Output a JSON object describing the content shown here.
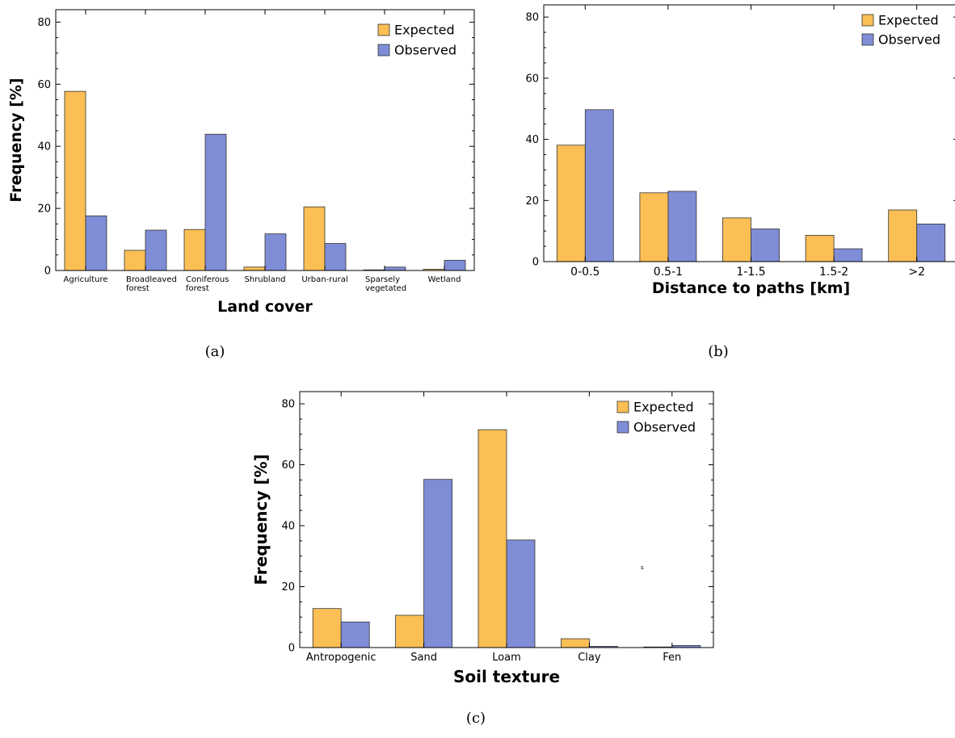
{
  "colors": {
    "expected": "#FBBF55",
    "observed": "#7F8DD6"
  },
  "stray_mark": "s",
  "chart_data": [
    {
      "type": "bar",
      "caption": "(a)",
      "categories": [
        [
          "Agriculture"
        ],
        [
          "Broadleaved",
          "forest"
        ],
        [
          "Coniferous",
          "forest"
        ],
        [
          "Shrubland"
        ],
        [
          "Urban-rural"
        ],
        [
          "Sparsely",
          "vegetated"
        ],
        [
          "Wetland"
        ]
      ],
      "series": [
        {
          "name": "Expected",
          "values": [
            57.7,
            6.5,
            13.2,
            1.1,
            20.5,
            0.2,
            0.4
          ]
        },
        {
          "name": "Observed",
          "values": [
            17.6,
            13.0,
            43.9,
            11.8,
            8.7,
            1.1,
            3.3
          ]
        }
      ],
      "xlabel": "Land cover",
      "ylabel": "Frequency [%]",
      "ylim": [
        0,
        84
      ],
      "yticks": [
        0,
        20,
        40,
        60,
        80
      ],
      "legend": "top-right",
      "grid": false
    },
    {
      "type": "bar",
      "caption": "(b)",
      "categories": [
        [
          "0-0.5"
        ],
        [
          "0.5-1"
        ],
        [
          "1-1.5"
        ],
        [
          "1.5-2"
        ],
        [
          ">2"
        ]
      ],
      "series": [
        {
          "name": "Expected",
          "values": [
            38.1,
            22.5,
            14.3,
            8.6,
            16.9
          ]
        },
        {
          "name": "Observed",
          "values": [
            49.7,
            23.0,
            10.7,
            4.2,
            12.3
          ]
        }
      ],
      "xlabel": "Distance to paths [km]",
      "ylabel": "",
      "ylim": [
        0,
        84
      ],
      "yticks": [
        0,
        20,
        40,
        60,
        80
      ],
      "legend": "top-right",
      "grid": false
    },
    {
      "type": "bar",
      "caption": "(c)",
      "categories": [
        [
          "Antropogenic"
        ],
        [
          "Sand"
        ],
        [
          "Loam"
        ],
        [
          "Clay"
        ],
        [
          "Fen"
        ]
      ],
      "series": [
        {
          "name": "Expected",
          "values": [
            12.8,
            10.6,
            71.5,
            2.9,
            0.2
          ]
        },
        {
          "name": "Observed",
          "values": [
            8.4,
            55.2,
            35.3,
            0.4,
            0.7
          ]
        }
      ],
      "xlabel": "Soil texture",
      "ylabel": "Frequency [%]",
      "ylim": [
        0,
        84
      ],
      "yticks": [
        0,
        20,
        40,
        60,
        80
      ],
      "legend": "top-right",
      "grid": false
    }
  ]
}
